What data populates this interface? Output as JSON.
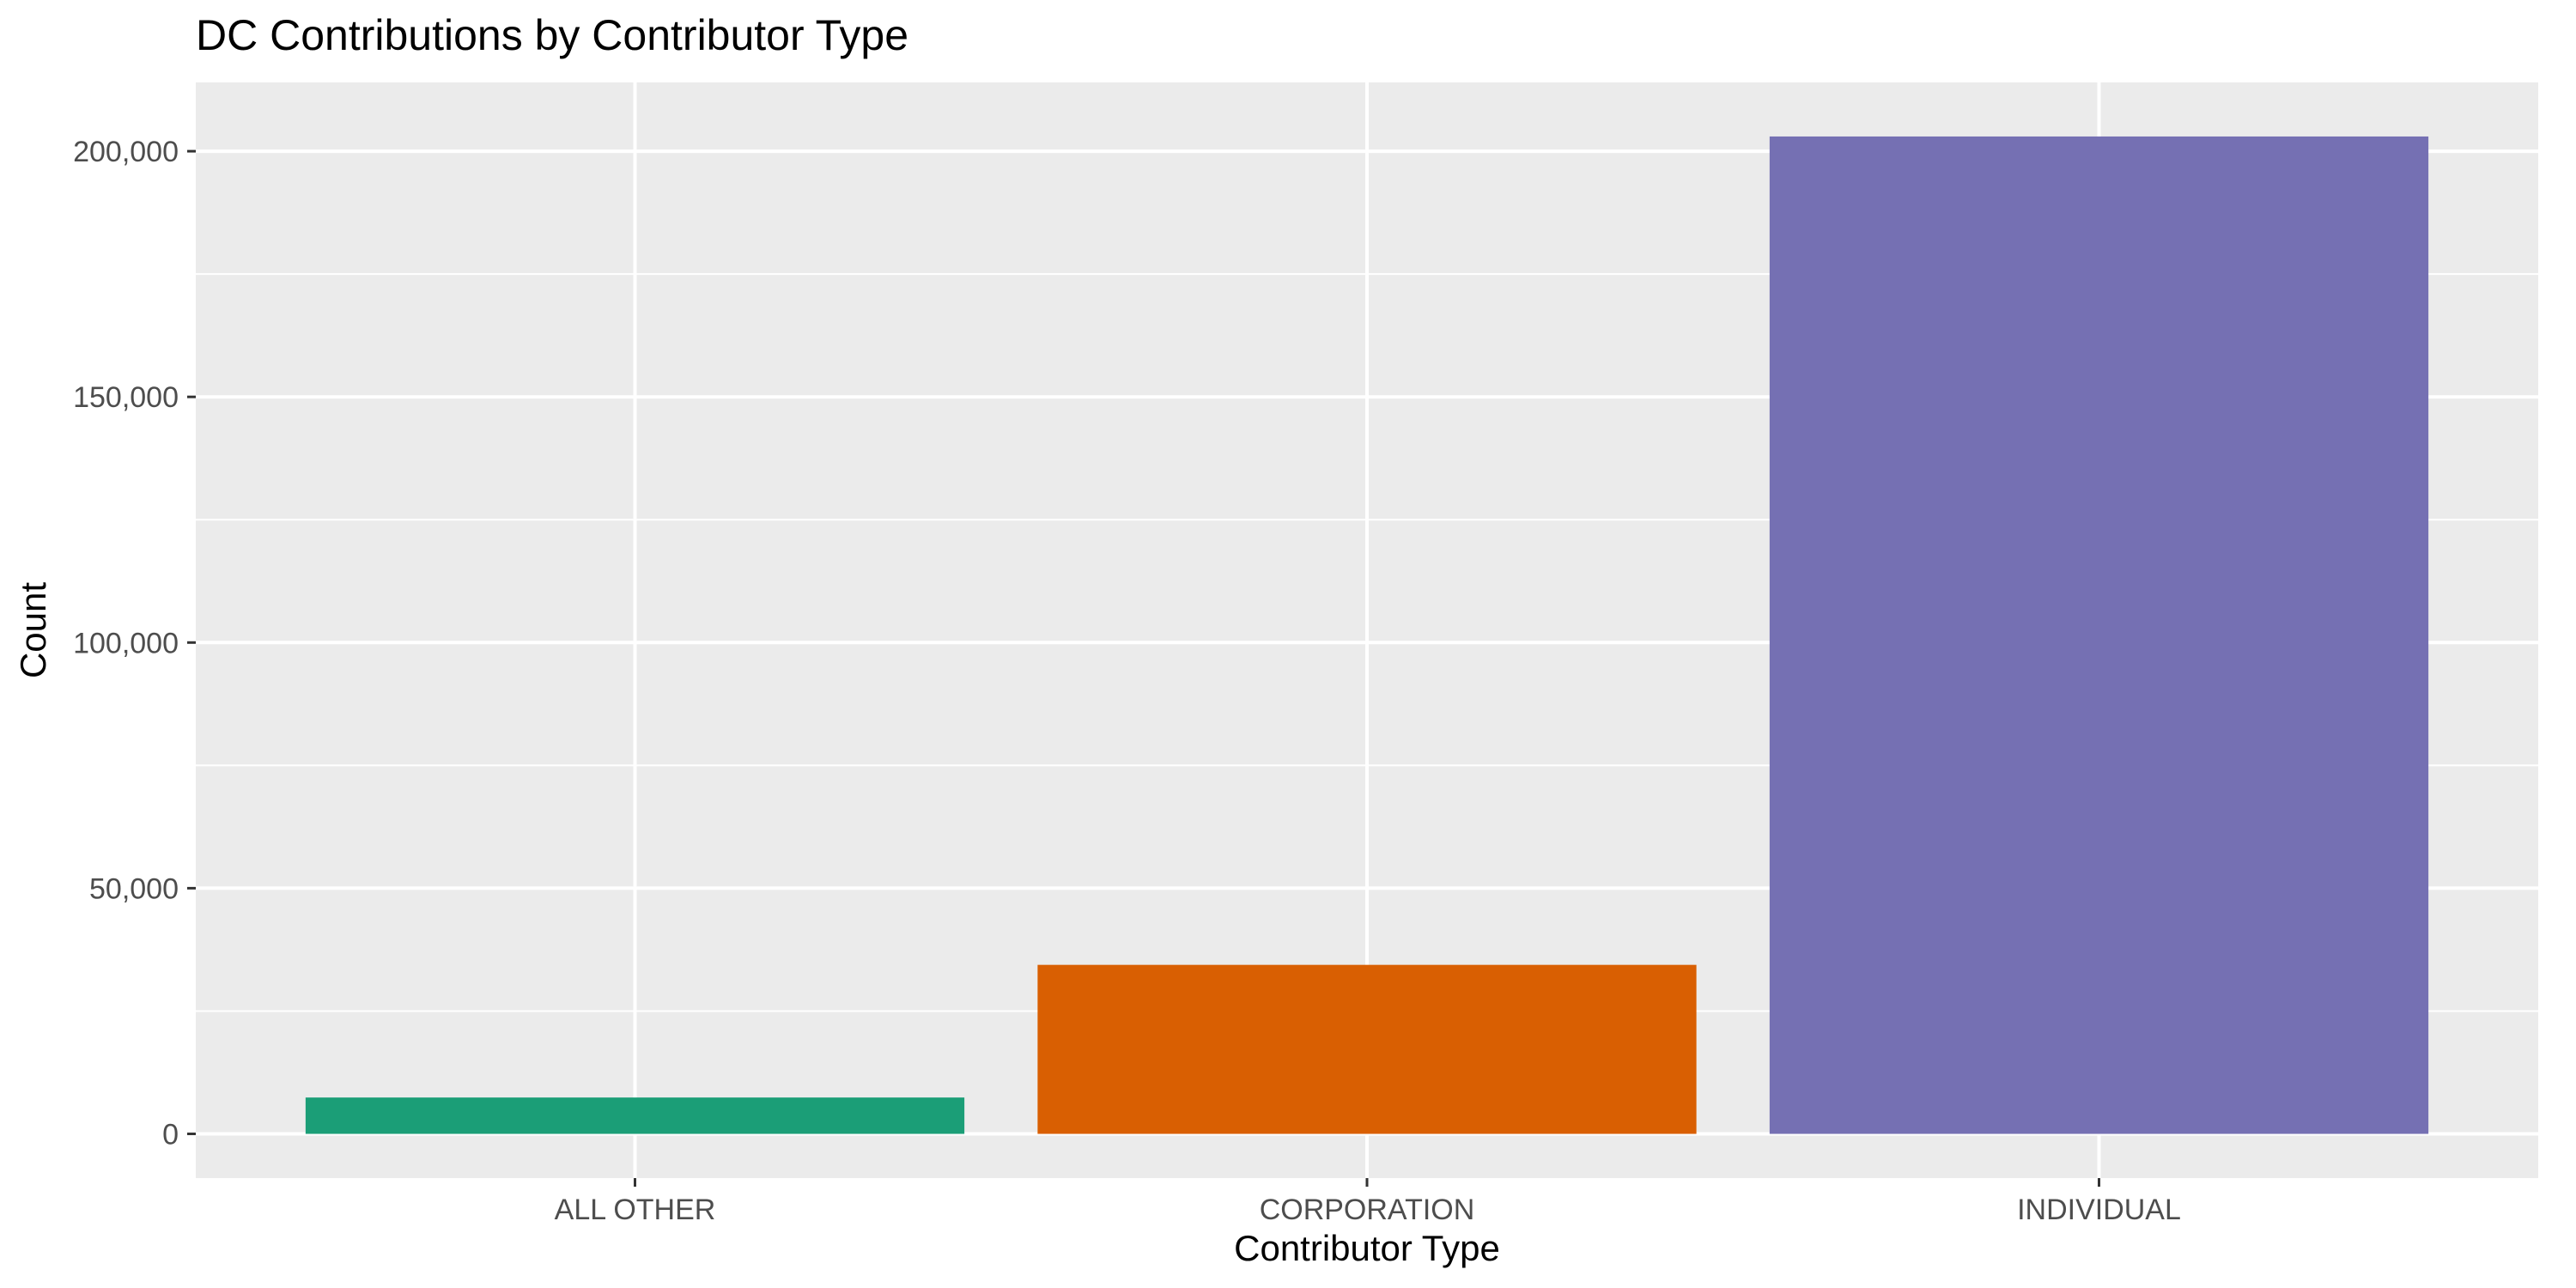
{
  "chart_data": {
    "type": "bar",
    "title": "DC Contributions by Contributor Type",
    "xlabel": "Contributor Type",
    "ylabel": "Count",
    "categories": [
      "ALL OTHER",
      "CORPORATION",
      "INDIVIDUAL"
    ],
    "values": [
      7400,
      34400,
      203000
    ],
    "colors": [
      "#1b9e77",
      "#d95f02",
      "#7570b3"
    ],
    "ylim": [
      -9000,
      214000
    ],
    "y_ticks": [
      0,
      50000,
      100000,
      150000,
      200000
    ],
    "y_tick_labels": [
      "0",
      "50,000",
      "100,000",
      "150,000",
      "200,000"
    ],
    "y_minor_ticks": [
      25000,
      75000,
      125000,
      175000
    ],
    "grid": true,
    "legend": "none",
    "panel_background": "#ebebeb",
    "grid_color": "#ffffff"
  }
}
